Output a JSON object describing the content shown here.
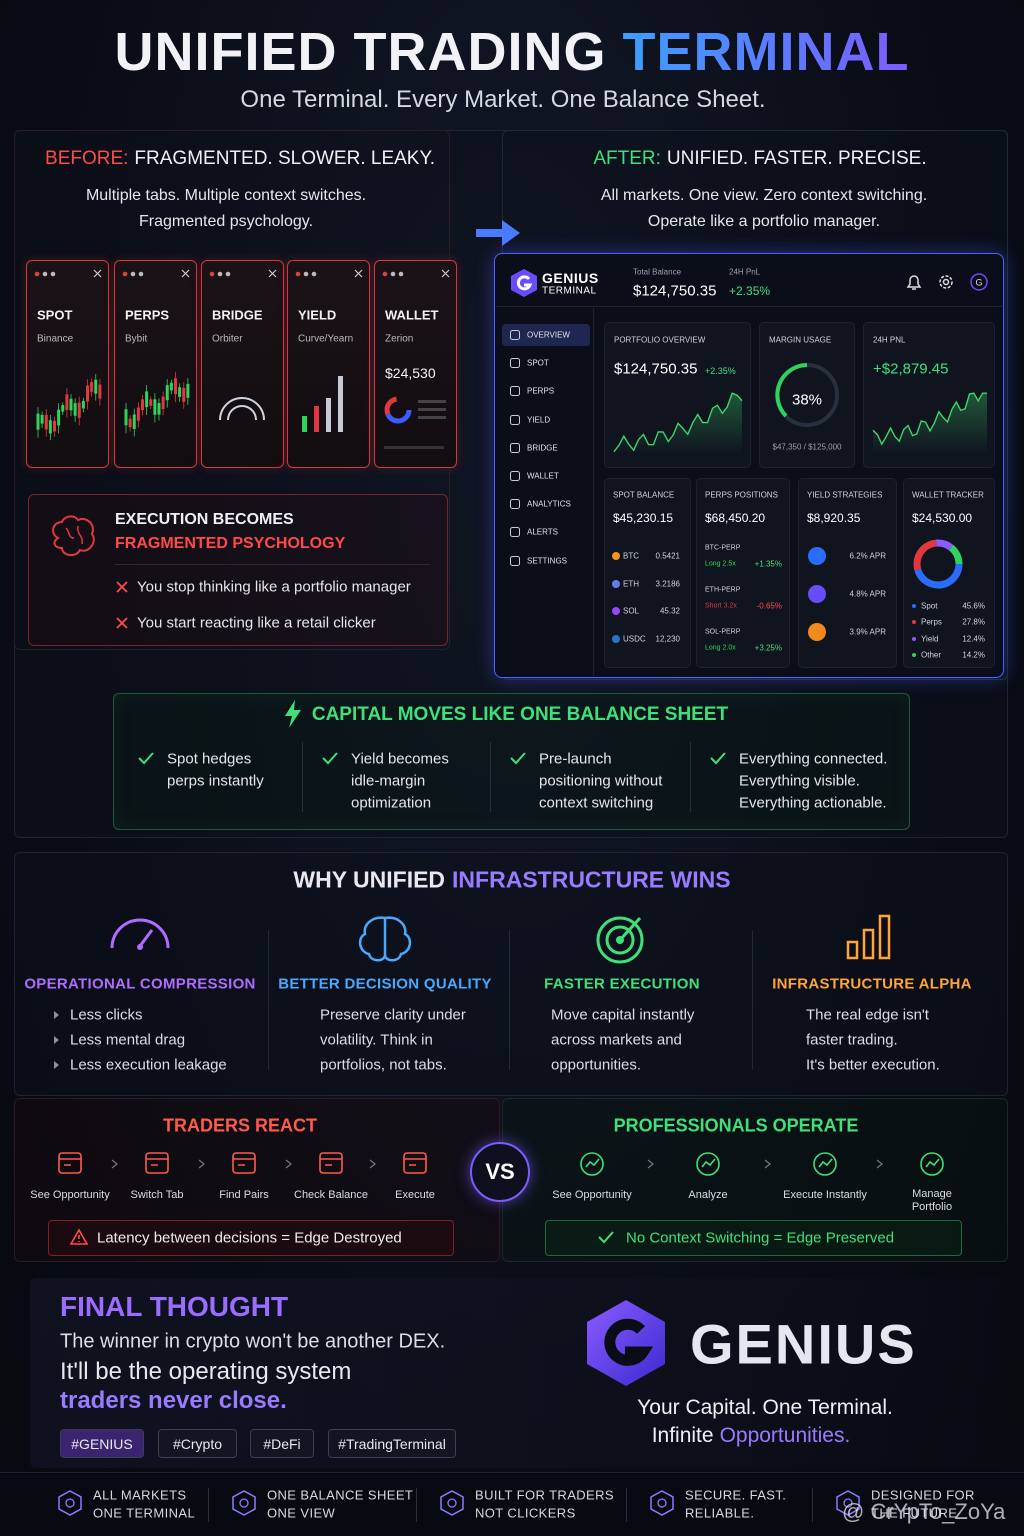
{
  "header": {
    "title_a": "UNIFIED TRADING",
    "title_b": "TERMINAL",
    "subtitle": "One Terminal. Every Market. One Balance Sheet."
  },
  "before": {
    "label": "BEFORE:",
    "heading": "FRAGMENTED. SLOWER. LEAKY.",
    "lines": [
      "Multiple tabs.  Multiple context switches.",
      "Fragmented psychology."
    ],
    "tabs": [
      {
        "name": "SPOT",
        "sub": "Binance"
      },
      {
        "name": "PERPS",
        "sub": "Bybit"
      },
      {
        "name": "BRIDGE",
        "sub": "Orbiter"
      },
      {
        "name": "YIELD",
        "sub": "Curve/Yearn"
      },
      {
        "name": "WALLET",
        "sub": "Zerion",
        "value": "$24,530"
      }
    ],
    "psych": {
      "title_a": "EXECUTION BECOMES",
      "title_b": "FRAGMENTED PSYCHOLOGY",
      "items": [
        "You stop thinking like a portfolio manager",
        "You start reacting like a retail clicker"
      ]
    }
  },
  "after": {
    "label": "AFTER:",
    "heading": "UNIFIED. FASTER. PRECISE.",
    "lines": [
      "All markets. One view. Zero context switching.",
      "Operate like a portfolio manager."
    ]
  },
  "terminal": {
    "brand": "GENIUS",
    "brand_sub": "TERMINAL",
    "total_label": "Total Balance",
    "total": "$124,750.35",
    "pnl_label": "24H PnL",
    "pnl": "+2.35%",
    "nav": [
      "OVERVIEW",
      "SPOT",
      "PERPS",
      "YIELD",
      "BRIDGE",
      "WALLET",
      "ANALYTICS",
      "ALERTS",
      "SETTINGS"
    ],
    "portfolio": {
      "label": "PORTFOLIO OVERVIEW",
      "value": "$124,750.35",
      "change": "+2.35%"
    },
    "margin": {
      "label": "MARGIN USAGE",
      "value": "38%",
      "detail": "$47,350 / $125,000"
    },
    "pnl24": {
      "label": "24H PNL",
      "value": "+$2,879.45"
    },
    "spot": {
      "label": "SPOT BALANCE",
      "value": "$45,230.15",
      "rows": [
        {
          "asset": "BTC",
          "amount": "0.5421"
        },
        {
          "asset": "ETH",
          "amount": "3.2186"
        },
        {
          "asset": "SOL",
          "amount": "45.32"
        },
        {
          "asset": "USDC",
          "amount": "12,230"
        }
      ]
    },
    "perps": {
      "label": "PERPS POSITIONS",
      "value": "$68,450.20",
      "rows": [
        {
          "pair": "BTC-PERP",
          "side": "Long 2.5x",
          "pct": "+1.35%"
        },
        {
          "pair": "ETH-PERP",
          "side": "Short 3.2x",
          "pct": "-0.65%"
        },
        {
          "pair": "SOL-PERP",
          "side": "Long 2.0x",
          "pct": "+3.25%"
        }
      ]
    },
    "yield": {
      "label": "YIELD STRATEGIES",
      "value": "$8,920.35",
      "rows": [
        "6.2% APR",
        "4.8% APR",
        "3.9% APR"
      ]
    },
    "wallet": {
      "label": "WALLET TRACKER",
      "value": "$24,530.00",
      "rows": [
        {
          "name": "Spot",
          "pct": "45.6%"
        },
        {
          "name": "Perps",
          "pct": "27.8%"
        },
        {
          "name": "Yield",
          "pct": "12.4%"
        },
        {
          "name": "Other",
          "pct": "14.2%"
        }
      ]
    }
  },
  "capital": {
    "title": "CAPITAL MOVES LIKE ONE BALANCE SHEET",
    "items": [
      [
        "Spot hedges",
        "perps instantly"
      ],
      [
        "Yield becomes",
        "idle-margin",
        "optimization"
      ],
      [
        "Pre-launch",
        "positioning without",
        "context switching"
      ],
      [
        "Everything connected.",
        "Everything visible.",
        "Everything actionable."
      ]
    ]
  },
  "why": {
    "title_a": "WHY UNIFIED",
    "title_b": "INFRASTRUCTURE WINS",
    "cols": [
      {
        "title": "OPERATIONAL COMPRESSION",
        "lines": [
          "Less clicks",
          "Less mental drag",
          "Less execution leakage"
        ]
      },
      {
        "title": "BETTER DECISION QUALITY",
        "lines": [
          "Preserve clarity under",
          "volatility. Think in",
          "portfolios, not tabs."
        ]
      },
      {
        "title": "FASTER EXECUTION",
        "lines": [
          "Move capital instantly",
          "across markets and",
          "opportunities."
        ]
      },
      {
        "title": "INFRASTRUCTURE ALPHA",
        "lines": [
          "The real edge isn't",
          "faster trading.",
          "It's better execution."
        ]
      }
    ]
  },
  "react": {
    "title": "TRADERS REACT",
    "steps": [
      "See Opportunity",
      "Switch Tab",
      "Find Pairs",
      "Check Balance",
      "Execute"
    ],
    "note": "Latency between decisions = Edge Destroyed"
  },
  "vs": "VS",
  "operate": {
    "title": "PROFESSIONALS OPERATE",
    "steps": [
      "See Opportunity",
      "Analyze",
      "Execute Instantly",
      "Manage Portfolio"
    ],
    "note": "No Context Switching = Edge Preserved"
  },
  "final": {
    "title": "FINAL THOUGHT",
    "line1": "The winner in crypto won't be another DEX.",
    "line2": "It'll be the operating system",
    "line3": "traders never close.",
    "tags": [
      "#GENIUS",
      "#Crypto",
      "#DeFi",
      "#TradingTerminal"
    ]
  },
  "brand": {
    "name": "GENIUS",
    "tag1": "Your Capital. One Terminal.",
    "tag2a": "Infinite",
    "tag2b": "Opportunities."
  },
  "footer": [
    [
      "ALL MARKETS",
      "ONE TERMINAL"
    ],
    [
      "ONE BALANCE SHEET",
      "ONE VIEW"
    ],
    [
      "BUILT FOR TRADERS",
      "NOT CLICKERS"
    ],
    [
      "SECURE. FAST.",
      "RELIABLE."
    ],
    [
      "DESIGNED FOR",
      "THE FUTURE"
    ]
  ],
  "watermark": "@ CrYpTo_ZoYa"
}
